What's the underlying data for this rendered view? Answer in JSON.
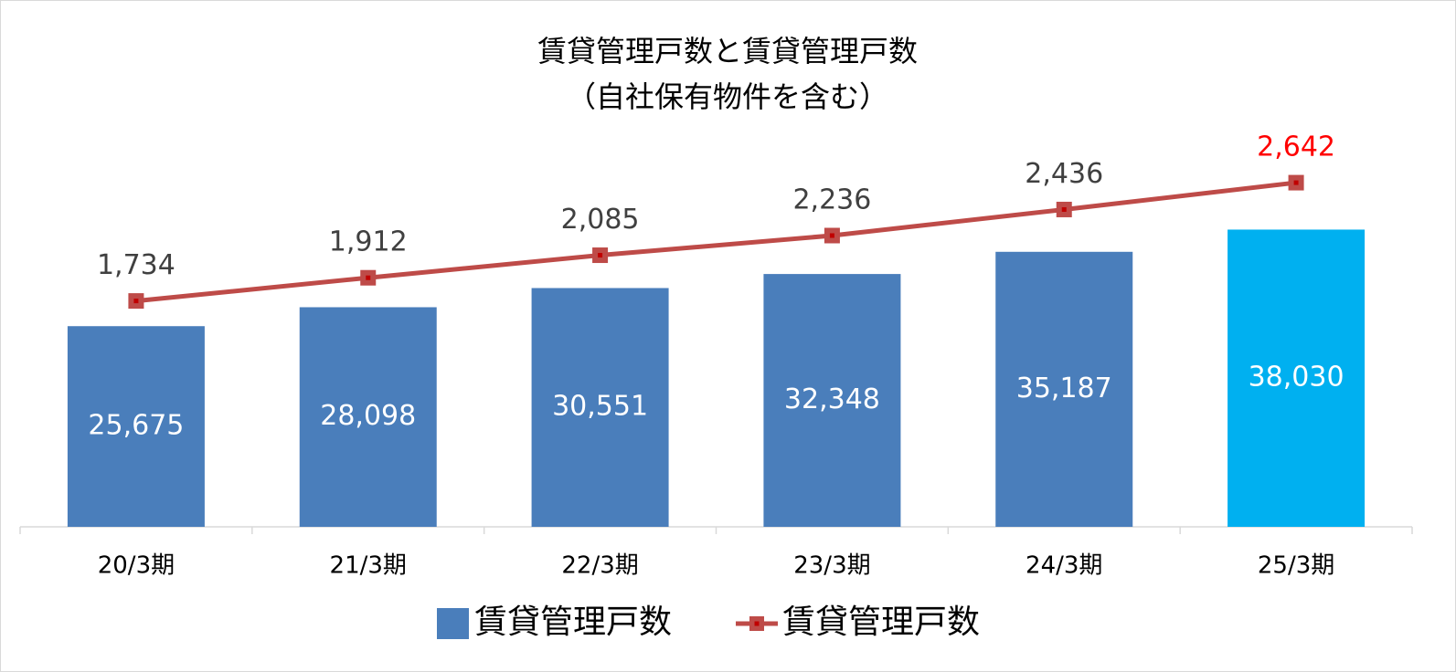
{
  "chart_data": {
    "type": "bar",
    "title": "賃貸管理戸数と賃貸管理戸数",
    "subtitle": "（自社保有物件を含む）",
    "categories": [
      "20/3期",
      "21/3期",
      "22/3期",
      "23/3期",
      "24/3期",
      "25/3期"
    ],
    "series": [
      {
        "name": "賃貸管理戸数",
        "type": "bar",
        "color": "#4a7ebb",
        "colors": [
          "#4a7ebb",
          "#4a7ebb",
          "#4a7ebb",
          "#4a7ebb",
          "#4a7ebb",
          "#00b0f0"
        ],
        "values": [
          25675,
          28098,
          30551,
          32348,
          35187,
          38030
        ],
        "value_labels": [
          "25,675",
          "28,098",
          "30,551",
          "32,348",
          "35,187",
          "38,030"
        ],
        "value_label_color": "#ffffff"
      },
      {
        "name": "賃貸管理戸数",
        "type": "line",
        "axis": "y2",
        "color": "#be4b48",
        "values": [
          1734,
          1912,
          2085,
          2236,
          2436,
          2642
        ],
        "value_labels": [
          "1,734",
          "1,912",
          "2,085",
          "2,236",
          "2,436",
          "2,642"
        ],
        "value_label_colors": [
          "#404040",
          "#404040",
          "#404040",
          "#404040",
          "#404040",
          "#ff0000"
        ]
      }
    ],
    "ylim": [
      0,
      50000
    ],
    "y2lim": [
      0,
      3000
    ],
    "legend": "bottom"
  }
}
